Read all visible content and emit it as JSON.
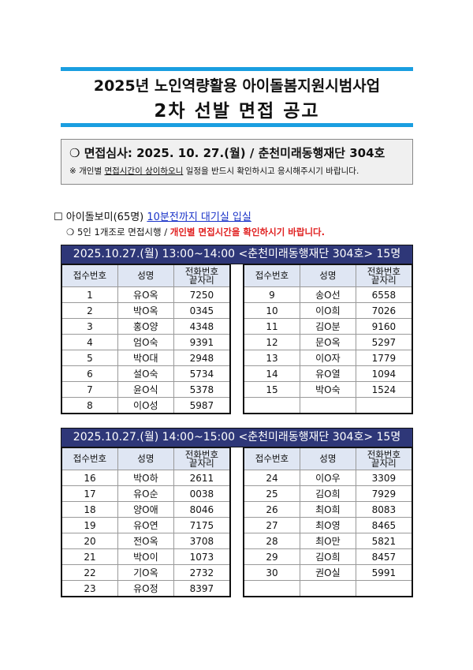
{
  "title": {
    "line1": "2025년 노인역량활용 아이돌봄지원시범사업",
    "line2": "2차 선발 면접 공고"
  },
  "notice": {
    "bullet": "❍",
    "headline": "면접심사: 2025. 10. 27.(월) / 춘천미래동행재단 304호",
    "note_prefix": "※ 개인별 ",
    "note_underlined": "면접시간이 상이하오니",
    "note_suffix": " 일정을 반드시 확인하시고 응시해주시기 바랍니다."
  },
  "section": {
    "checkbox": "☐",
    "label": "아이돌보미(65명)",
    "highlight": "10분전까지 대기실 입실",
    "sub_bullet": "❍",
    "sub_text": "5인 1개조로 면접시행 / ",
    "sub_red": "개인별 면접시간을 확인하시기 바랍니다."
  },
  "columns": [
    "접수번호",
    "성명",
    "전화번호\n끝자리"
  ],
  "sessions": [
    {
      "heading": "2025.10.27.(월) 13:00~14:00 <춘천미래동행재단 304호> 15명",
      "left": [
        [
          "1",
          "유O옥",
          "7250"
        ],
        [
          "2",
          "박O옥",
          "0345"
        ],
        [
          "3",
          "홍O양",
          "4348"
        ],
        [
          "4",
          "엄O숙",
          "9391"
        ],
        [
          "5",
          "박O대",
          "2948"
        ],
        [
          "6",
          "설O숙",
          "5734"
        ],
        [
          "7",
          "윤O식",
          "5378"
        ],
        [
          "8",
          "이O성",
          "5987"
        ]
      ],
      "right": [
        [
          "9",
          "송O선",
          "6558"
        ],
        [
          "10",
          "이O희",
          "7026"
        ],
        [
          "11",
          "김O분",
          "9160"
        ],
        [
          "12",
          "문O옥",
          "5297"
        ],
        [
          "13",
          "이O자",
          "1779"
        ],
        [
          "14",
          "유O열",
          "1094"
        ],
        [
          "15",
          "박O숙",
          "1524"
        ],
        [
          "",
          "",
          ""
        ]
      ]
    },
    {
      "heading": "2025.10.27.(월) 14:00~15:00 <춘천미래동행재단 304호> 15명",
      "left": [
        [
          "16",
          "박O하",
          "2611"
        ],
        [
          "17",
          "유O순",
          "0038"
        ],
        [
          "18",
          "양O애",
          "8046"
        ],
        [
          "19",
          "유O연",
          "7175"
        ],
        [
          "20",
          "전O옥",
          "3708"
        ],
        [
          "21",
          "박O이",
          "1073"
        ],
        [
          "22",
          "기O옥",
          "2732"
        ],
        [
          "23",
          "유O정",
          "8397"
        ]
      ],
      "right": [
        [
          "24",
          "이O우",
          "3309"
        ],
        [
          "25",
          "김O희",
          "7929"
        ],
        [
          "26",
          "최O희",
          "8083"
        ],
        [
          "27",
          "최O영",
          "8465"
        ],
        [
          "28",
          "최O만",
          "5821"
        ],
        [
          "29",
          "김O희",
          "8457"
        ],
        [
          "30",
          "권O실",
          "5991"
        ],
        [
          "",
          "",
          ""
        ]
      ]
    }
  ]
}
